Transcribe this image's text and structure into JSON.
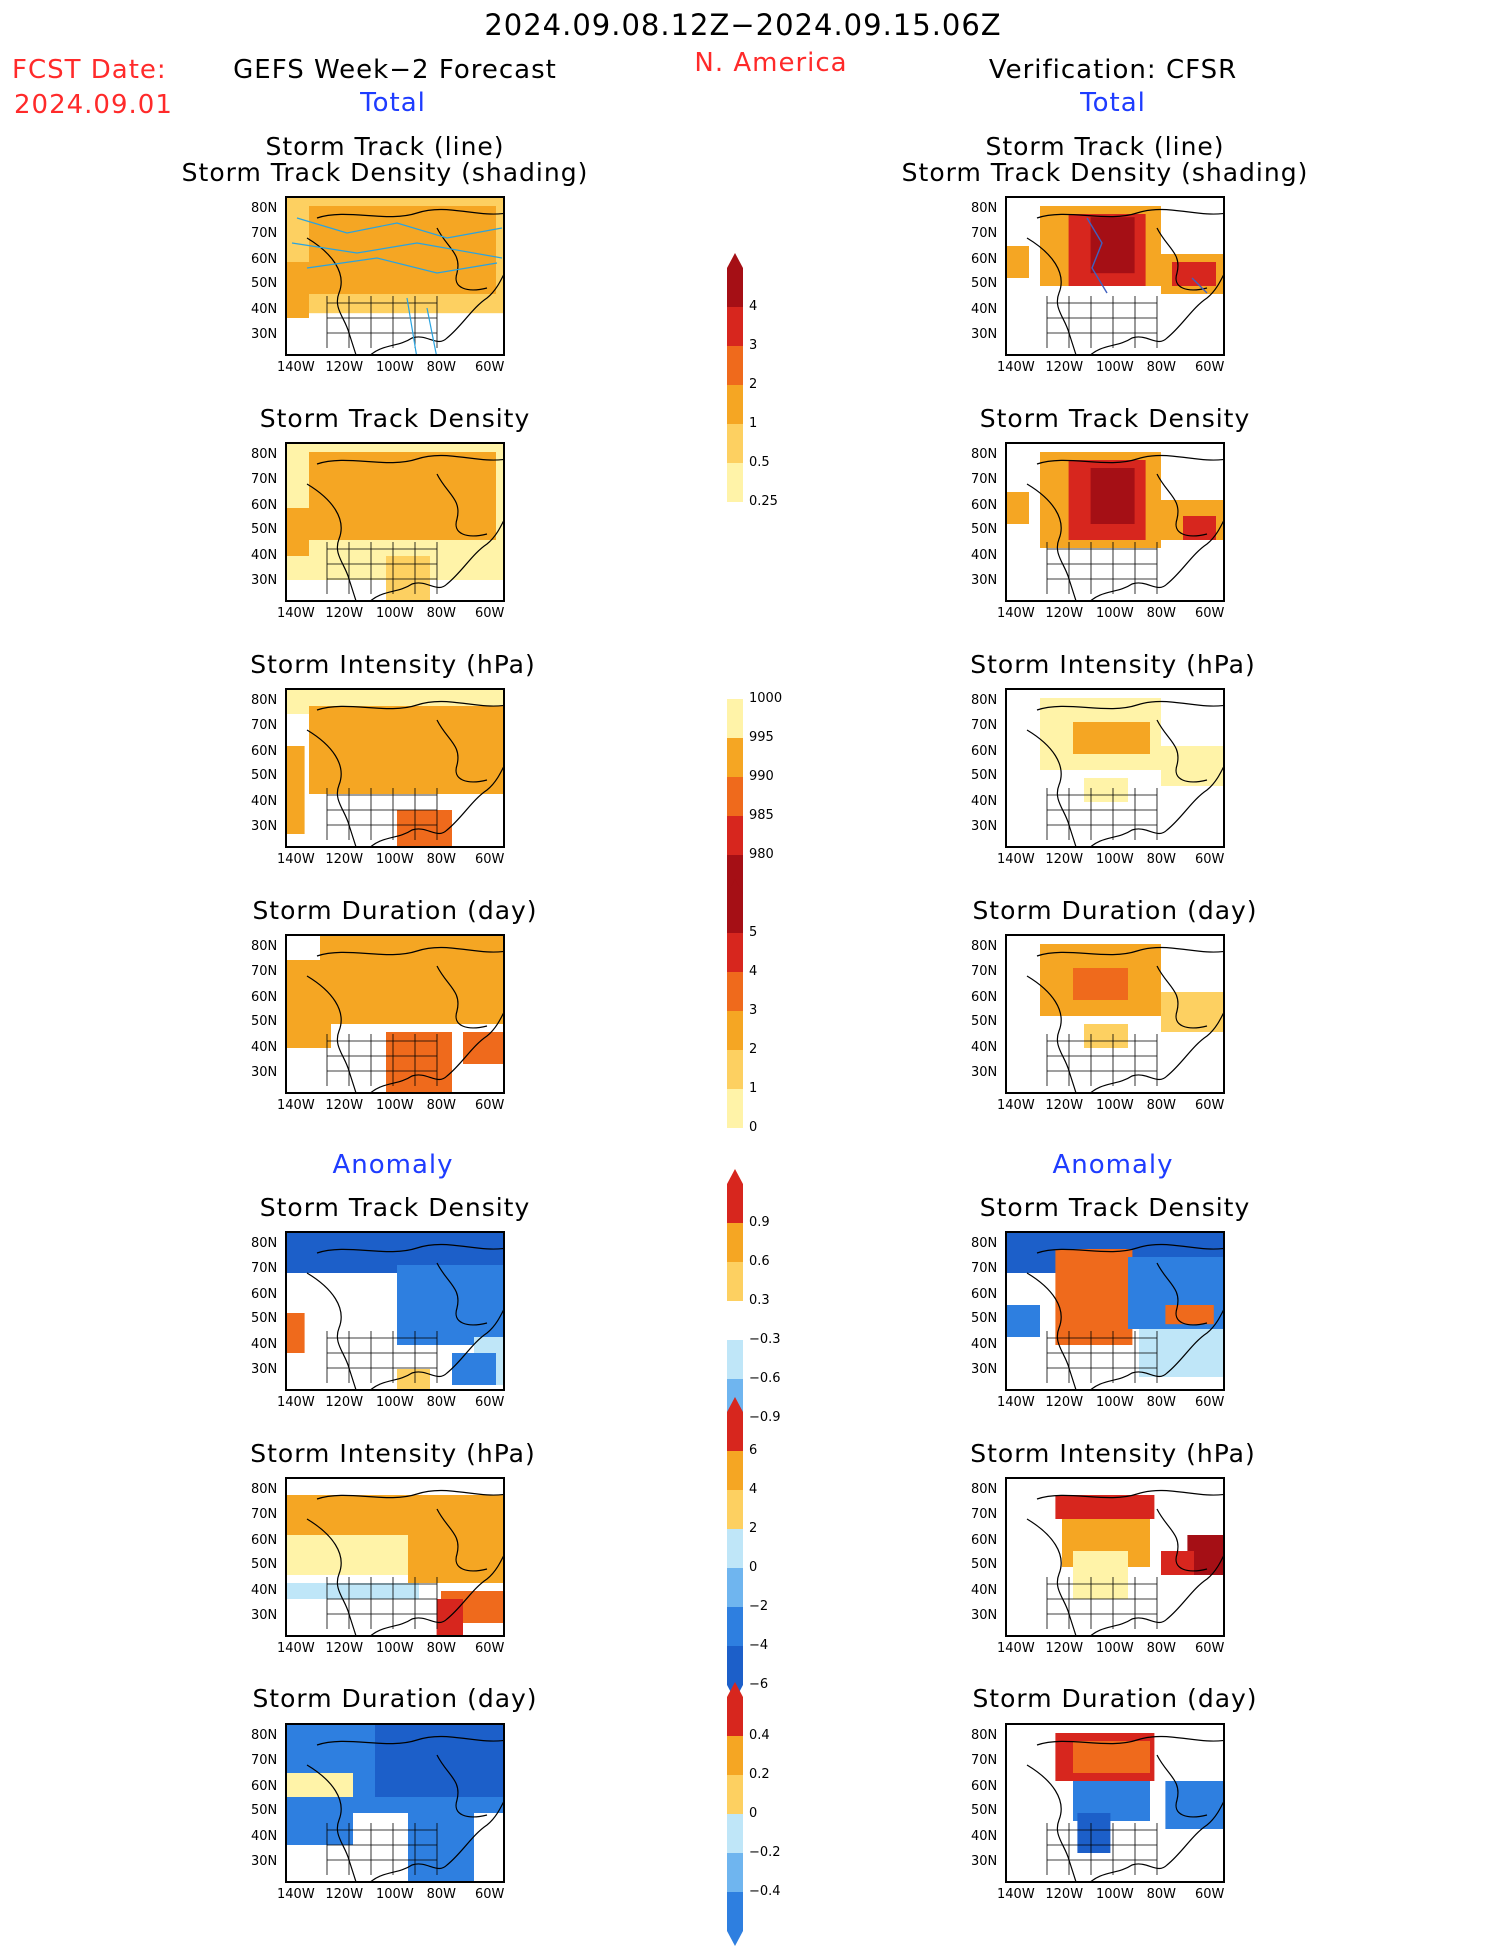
{
  "header": {
    "date_range": "2024.09.08.12Z−2024.09.15.06Z",
    "fcst_label": "FCST Date:",
    "fcst_date": "2024.09.01",
    "left_title": "GEFS Week−2 Forecast",
    "region": "N. America",
    "right_title": "Verification: CFSR"
  },
  "sections": {
    "total": "Total",
    "anomaly": "Anomaly"
  },
  "panel_titles": {
    "track_line": "Storm Track (line)",
    "track_shading": "Storm Track Density (shading)",
    "density": "Storm Track Density",
    "intensity": "Storm Intensity (hPa)",
    "duration": "Storm Duration (day)"
  },
  "axes": {
    "lat": [
      "80N",
      "70N",
      "60N",
      "50N",
      "40N",
      "30N"
    ],
    "lon": [
      "140W",
      "120W",
      "100W",
      "80W",
      "60W"
    ]
  },
  "colorbars": {
    "density": [
      "4",
      "3",
      "2",
      "1",
      "0.5",
      "0.25"
    ],
    "intensity": [
      "1000",
      "995",
      "990",
      "985",
      "980"
    ],
    "duration": [
      "5",
      "4",
      "3",
      "2",
      "1",
      "0"
    ],
    "density_anom": [
      "0.9",
      "0.6",
      "0.3",
      "−0.3",
      "−0.6",
      "−0.9"
    ],
    "intensity_anom": [
      "6",
      "4",
      "2",
      "0",
      "−2",
      "−4",
      "−6"
    ],
    "duration_anom": [
      "0.4",
      "0.2",
      "0",
      "−0.2",
      "−0.4"
    ]
  },
  "colors": {
    "yellow": "#fff3a8",
    "lightorange": "#fdd061",
    "orange": "#f5a623",
    "darkorange": "#ef6a1c",
    "red": "#d7261e",
    "darkred": "#a50f15",
    "lightblue": "#bfe6f8",
    "midblue": "#6fb5ef",
    "blue": "#2e7fe0",
    "darkblue": "#1c5fc9"
  }
}
